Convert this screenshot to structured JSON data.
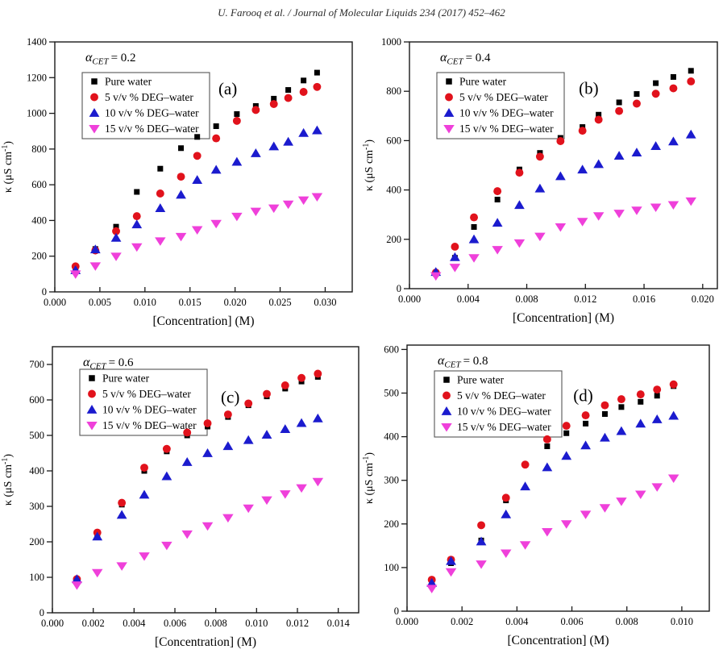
{
  "header": {
    "citation": "U. Farooq et al. / Journal of Molecular Liquids 234 (2017) 452–462"
  },
  "colors": {
    "pure_water": "#000000",
    "deg5": "#e1121c",
    "deg10": "#1b1bce",
    "deg15": "#ef40da",
    "frame": "#1a1a1a"
  },
  "axis_labels": {
    "x": "[Concentration] (M)",
    "y_main": "κ (μS cm",
    "y_sup": "-1",
    "y_close": ")"
  },
  "chart_data": [
    {
      "type": "scatter",
      "panel": "(a)",
      "title": {
        "symbol": "α",
        "subscript": "CET",
        "equals": "= ",
        "value": "0.2"
      },
      "xlabel": "[Concentration] (M)",
      "ylabel": "κ (μS cm-1)",
      "xlim": [
        0,
        0.033
      ],
      "ylim": [
        0,
        1400
      ],
      "xticks": [
        0.0,
        0.005,
        0.01,
        0.015,
        0.02,
        0.025,
        0.03
      ],
      "yticks": [
        0,
        200,
        400,
        600,
        800,
        1000,
        1200,
        1400
      ],
      "x": [
        0.0023,
        0.0045,
        0.0068,
        0.0091,
        0.0117,
        0.014,
        0.0158,
        0.0179,
        0.0202,
        0.0223,
        0.0243,
        0.0259,
        0.0276,
        0.0291
      ],
      "series": [
        {
          "name": "Pure water",
          "marker": "square",
          "color": "#000000",
          "values": [
            130,
            240,
            365,
            560,
            690,
            805,
            868,
            928,
            996,
            1041,
            1082,
            1131,
            1184,
            1228
          ]
        },
        {
          "name": "5 v/v %  DEG–water",
          "marker": "circle",
          "color": "#e1121c",
          "values": [
            143,
            232,
            340,
            424,
            551,
            645,
            762,
            860,
            958,
            1019,
            1052,
            1086,
            1120,
            1148
          ]
        },
        {
          "name": "10 v/v % DEG–water",
          "marker": "triangle-up",
          "color": "#1b1bce",
          "values": [
            122,
            238,
            303,
            378,
            469,
            544,
            627,
            684,
            729,
            777,
            815,
            841,
            890,
            905
          ]
        },
        {
          "name": "15 v/v % DEG–water",
          "marker": "triangle-down",
          "color": "#ef40da",
          "values": [
            100,
            145,
            199,
            252,
            285,
            310,
            348,
            383,
            423,
            451,
            469,
            491,
            514,
            533
          ]
        }
      ]
    },
    {
      "type": "scatter",
      "panel": "(b)",
      "title": {
        "symbol": "α",
        "subscript": "CET",
        "equals": "= ",
        "value": "0.4"
      },
      "xlabel": "[Concentration] (M)",
      "ylabel": "κ (μS cm-1)",
      "xlim": [
        0,
        0.021
      ],
      "ylim": [
        0,
        1000
      ],
      "xticks": [
        0.0,
        0.004,
        0.008,
        0.012,
        0.016,
        0.02
      ],
      "yticks": [
        0,
        200,
        400,
        600,
        800,
        1000
      ],
      "x": [
        0.0018,
        0.0031,
        0.0044,
        0.006,
        0.0075,
        0.0089,
        0.0103,
        0.0118,
        0.0129,
        0.0143,
        0.0155,
        0.0168,
        0.018,
        0.0192
      ],
      "series": [
        {
          "name": "Pure water",
          "marker": "square",
          "color": "#000000",
          "values": [
            60,
            125,
            250,
            361,
            483,
            550,
            611,
            655,
            705,
            755,
            789,
            833,
            858,
            883
          ]
        },
        {
          "name": "5 v/v % DEG–water",
          "marker": "circle",
          "color": "#e1121c",
          "values": [
            65,
            170,
            289,
            395,
            470,
            535,
            598,
            640,
            685,
            720,
            750,
            790,
            812,
            840
          ]
        },
        {
          "name": "10 v/v % DEG–water",
          "marker": "triangle-up",
          "color": "#1b1bce",
          "values": [
            68,
            128,
            200,
            267,
            339,
            406,
            456,
            483,
            505,
            539,
            552,
            578,
            597,
            625
          ]
        },
        {
          "name": "15 v/v % DEG–water",
          "marker": "triangle-down",
          "color": "#ef40da",
          "values": [
            52,
            86,
            125,
            158,
            185,
            212,
            250,
            272,
            295,
            305,
            318,
            330,
            340,
            355
          ]
        }
      ]
    },
    {
      "type": "scatter",
      "panel": "(c)",
      "title": {
        "symbol": "α",
        "subscript": "CET",
        "equals": "= ",
        "value": "0.6"
      },
      "xlabel": "[Concentration] (M)",
      "ylabel": "κ (μS cm-1)",
      "xlim": [
        0,
        0.015
      ],
      "ylim": [
        0,
        750
      ],
      "xticks": [
        0.0,
        0.002,
        0.004,
        0.006,
        0.008,
        0.01,
        0.012,
        0.014
      ],
      "yticks": [
        0,
        100,
        200,
        300,
        400,
        500,
        600,
        700
      ],
      "x": [
        0.0012,
        0.0022,
        0.0034,
        0.0045,
        0.0056,
        0.0066,
        0.0076,
        0.0086,
        0.0096,
        0.0105,
        0.0114,
        0.0122,
        0.013
      ],
      "series": [
        {
          "name": "Pure water",
          "marker": "square",
          "color": "#000000",
          "values": [
            88,
            220,
            305,
            400,
            455,
            500,
            525,
            552,
            585,
            610,
            632,
            652,
            665
          ]
        },
        {
          "name": "5  v/v %  DEG–water",
          "marker": "circle",
          "color": "#e1121c",
          "values": [
            95,
            226,
            310,
            409,
            462,
            508,
            534,
            559,
            590,
            617,
            641,
            662,
            674
          ]
        },
        {
          "name": "10 v/v % DEG–water",
          "marker": "triangle-up",
          "color": "#1b1bce",
          "values": [
            95,
            215,
            276,
            333,
            385,
            425,
            450,
            470,
            487,
            502,
            518,
            535,
            548
          ]
        },
        {
          "name": "15 v/v % DEG–water",
          "marker": "triangle-down",
          "color": "#ef40da",
          "values": [
            78,
            113,
            132,
            160,
            190,
            222,
            245,
            268,
            295,
            318,
            335,
            352,
            370
          ]
        }
      ]
    },
    {
      "type": "scatter",
      "panel": "(d)",
      "title": {
        "symbol": "α",
        "subscript": "CET",
        "equals": "= ",
        "value": "0.8"
      },
      "xlabel": "[Concentration] (M)",
      "ylabel": "κ (μS cm-1)",
      "xlim": [
        0,
        0.011
      ],
      "ylim": [
        0,
        610
      ],
      "xticks": [
        0.0,
        0.002,
        0.004,
        0.006,
        0.008,
        0.01
      ],
      "yticks": [
        0,
        100,
        200,
        300,
        400,
        500,
        600
      ],
      "x": [
        0.0009,
        0.0016,
        0.0027,
        0.0036,
        0.0043,
        0.0051,
        0.0058,
        0.0065,
        0.0072,
        0.0078,
        0.0085,
        0.0091,
        0.0097
      ],
      "series": [
        {
          "name": "Pure water",
          "marker": "square",
          "color": "#000000",
          "values": [
            60,
            110,
            162,
            254,
            336,
            378,
            408,
            430,
            452,
            468,
            480,
            494,
            516
          ]
        },
        {
          "name": "5 v/v % DEG–water",
          "marker": "circle",
          "color": "#e1121c",
          "values": [
            72,
            118,
            197,
            260,
            336,
            394,
            425,
            449,
            472,
            486,
            497,
            508,
            520
          ]
        },
        {
          "name": "10 v/v % DEG–water",
          "marker": "triangle-up",
          "color": "#1b1bce",
          "values": [
            65,
            115,
            160,
            222,
            286,
            330,
            356,
            380,
            398,
            413,
            430,
            440,
            448
          ]
        },
        {
          "name": "15 v/v % DEG–water",
          "marker": "triangle-down",
          "color": "#ef40da",
          "values": [
            52,
            90,
            108,
            133,
            152,
            182,
            200,
            222,
            237,
            252,
            268,
            285,
            305
          ]
        }
      ]
    }
  ]
}
